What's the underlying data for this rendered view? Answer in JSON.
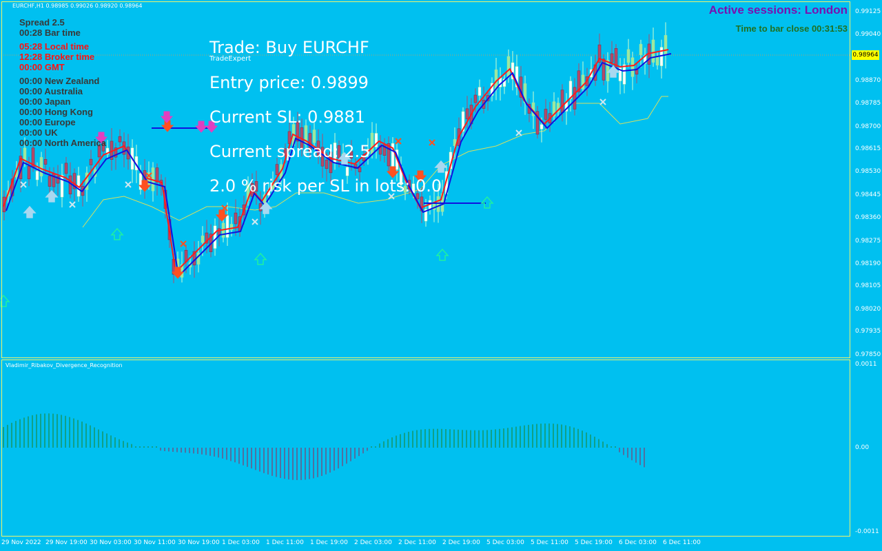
{
  "header": {
    "symbol_line": "EURCHF,H1  0.98985 0.99026 0.98920 0.98964",
    "active_sessions": "Active sessions:  London",
    "time_to_close": "Time to bar close 00:31:53"
  },
  "info_panel": [
    {
      "text": "Spread     2.5",
      "style": "dark"
    },
    {
      "text": "00:28 Bar time",
      "style": "dark"
    },
    {
      "text": "05:28 Local time",
      "style": "red"
    },
    {
      "text": "12:28 Broker time",
      "style": "red"
    },
    {
      "text": "00:00 GMT",
      "style": "red"
    },
    {
      "text": "00:00 New Zealand",
      "style": "dark"
    },
    {
      "text": "00:00 Australia",
      "style": "dark"
    },
    {
      "text": "00:00 Japan",
      "style": "dark"
    },
    {
      "text": "00:00 Hong Kong",
      "style": "dark"
    },
    {
      "text": "00:00 Europe",
      "style": "dark"
    },
    {
      "text": "00:00 UK",
      "style": "dark"
    },
    {
      "text": "00:00 North America",
      "style": "dark"
    }
  ],
  "trade_panel": {
    "trade": "Trade: Buy EURCHF",
    "expert": "TradeExpert",
    "entry": "Entry price: 0.9899",
    "sl": "Current SL: 0.9881",
    "spread": "Current spread: 2.5",
    "risk": "2.0 % risk per SL in lots: 0.0"
  },
  "price_axis": [
    "0.99125",
    "0.99040",
    "0.98870",
    "0.98785",
    "0.98700",
    "0.98615",
    "0.98530",
    "0.98445",
    "0.98360",
    "0.98275",
    "0.98190",
    "0.98105",
    "0.98020",
    "0.97935",
    "0.97850"
  ],
  "current_price": "0.98964",
  "indicator": {
    "name": "Vladimir_Ribakov_Divergence_Recognition",
    "axis": [
      "0.0011",
      "0.00",
      "-0.0011"
    ]
  },
  "time_axis": [
    "29 Nov 2022",
    "29 Nov 19:00",
    "30 Nov 03:00",
    "30 Nov 11:00",
    "30 Nov 19:00",
    "1 Dec 03:00",
    "1 Dec 11:00",
    "1 Dec 19:00",
    "2 Dec 03:00",
    "2 Dec 11:00",
    "2 Dec 19:00",
    "5 Dec 03:00",
    "5 Dec 11:00",
    "5 Dec 19:00",
    "6 Dec 03:00",
    "6 Dec 11:00"
  ],
  "colors": {
    "background": "#00c0f0",
    "frame": "#f5f56a",
    "bull_candle": "#ffffff",
    "bear_candle": "#b44a6a",
    "red_ma": "#ff1a1a",
    "blue_ma": "#1010e0",
    "sell_arrow": "#ff5020",
    "buy_arrow": "#a8d8f0",
    "session_title": "#7a10b0",
    "bar_close": "#207020"
  }
}
